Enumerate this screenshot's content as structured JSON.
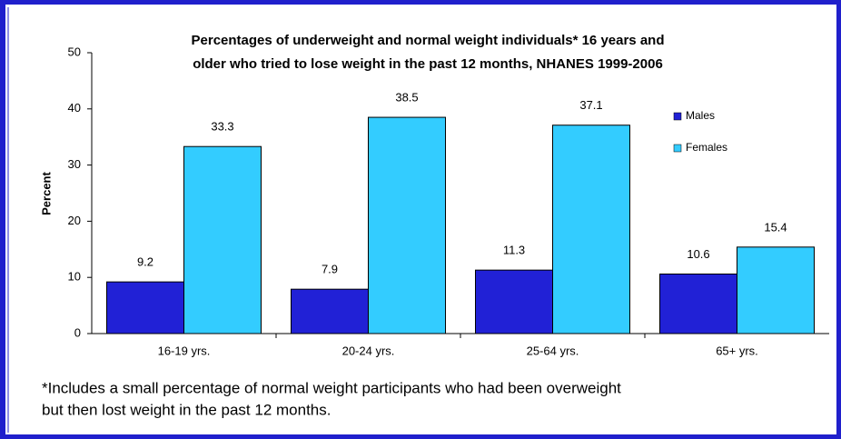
{
  "chart_data": {
    "type": "bar",
    "title": [
      "Percentages of underweight and normal weight individuals* 16 years and",
      "older who tried to lose weight in the past 12 months, NHANES 1999-2006"
    ],
    "y_label": "Percent",
    "categories": [
      "16-19 yrs.",
      "20-24 yrs.",
      "25-64 yrs.",
      "65+ yrs."
    ],
    "series": [
      {
        "name": "Males",
        "color": "#2121d6",
        "values": [
          9.2,
          7.9,
          11.3,
          10.6
        ]
      },
      {
        "name": "Females",
        "color": "#33ccff",
        "values": [
          33.3,
          38.5,
          37.1,
          15.4
        ]
      }
    ],
    "ylim": [
      0,
      50
    ],
    "yticks": [
      0,
      10,
      20,
      30,
      40,
      50
    ],
    "legend": "right",
    "footnote": [
      "*Includes a small percentage of normal weight participants who had been overweight",
      "but then lost weight in the past 12 months."
    ]
  }
}
